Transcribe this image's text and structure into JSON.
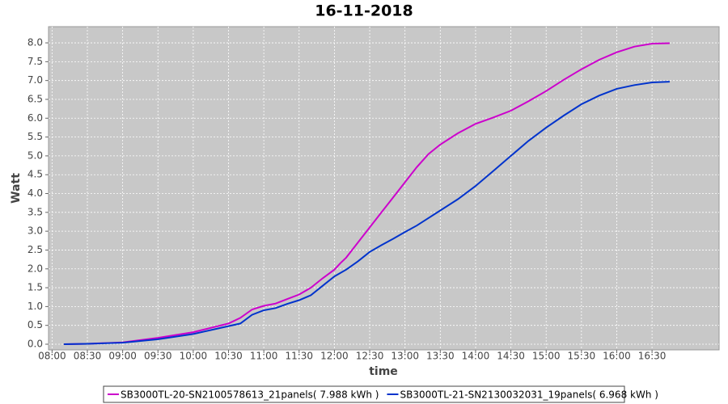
{
  "chart_data": {
    "type": "line",
    "title": "16-11-2018",
    "x_label": "time",
    "y_label": "Watt",
    "x": [
      "08:10",
      "08:30",
      "09:00",
      "09:30",
      "10:00",
      "10:30",
      "10:40",
      "10:50",
      "11:00",
      "11:10",
      "11:20",
      "11:30",
      "11:40",
      "11:50",
      "12:00",
      "12:05",
      "12:10",
      "12:20",
      "12:30",
      "12:40",
      "12:50",
      "13:00",
      "13:10",
      "13:20",
      "13:30",
      "13:45",
      "14:00",
      "14:15",
      "14:30",
      "14:45",
      "15:00",
      "15:15",
      "15:30",
      "15:45",
      "16:00",
      "16:15",
      "16:30",
      "16:45"
    ],
    "series": [
      {
        "name": "SB3000TL-20-SN2100578613_21panels( 7.988 kWh )",
        "color": "#cc00cc",
        "values": [
          0,
          0.01,
          0.05,
          0.17,
          0.32,
          0.55,
          0.7,
          0.92,
          1.02,
          1.08,
          1.2,
          1.32,
          1.5,
          1.75,
          1.98,
          2.15,
          2.3,
          2.7,
          3.1,
          3.5,
          3.9,
          4.3,
          4.7,
          5.05,
          5.3,
          5.6,
          5.85,
          6.02,
          6.2,
          6.45,
          6.72,
          7.02,
          7.3,
          7.55,
          7.75,
          7.9,
          7.98,
          7.99
        ]
      },
      {
        "name": "SB3000TL-21-SN2130032031_19panels( 6.968 kWh )",
        "color": "#0033cc",
        "values": [
          0,
          0.01,
          0.04,
          0.13,
          0.27,
          0.48,
          0.55,
          0.78,
          0.9,
          0.96,
          1.07,
          1.17,
          1.3,
          1.55,
          1.8,
          1.89,
          1.98,
          2.2,
          2.45,
          2.63,
          2.8,
          2.98,
          3.15,
          3.35,
          3.55,
          3.85,
          4.2,
          4.6,
          5.0,
          5.4,
          5.75,
          6.07,
          6.37,
          6.6,
          6.78,
          6.88,
          6.95,
          6.97
        ]
      }
    ],
    "xlim": [
      "07:57",
      "17:27"
    ],
    "xticks": [
      "08:00",
      "08:30",
      "09:00",
      "09:30",
      "10:00",
      "10:30",
      "11:00",
      "11:30",
      "12:00",
      "12:30",
      "13:00",
      "13:30",
      "14:00",
      "14:30",
      "15:00",
      "15:30",
      "16:00",
      "16:30"
    ],
    "ylim": [
      -0.15,
      8.43
    ],
    "yticks": [
      {
        "value": 0,
        "label": "0.0"
      },
      0.5,
      {
        "value": 1,
        "label": "1.0"
      },
      1.5,
      {
        "value": 2,
        "label": "2.0"
      },
      2.5,
      {
        "value": 3,
        "label": "3.0"
      },
      3.5,
      {
        "value": 4,
        "label": "4.0"
      },
      4.5,
      {
        "value": 5,
        "label": "5.0"
      },
      5.5,
      {
        "value": 6,
        "label": "6.0"
      },
      6.5,
      {
        "value": 7,
        "label": "7.0"
      },
      7.5,
      {
        "value": 8,
        "label": "8.0"
      }
    ],
    "grid": true,
    "legend": "bottom"
  }
}
